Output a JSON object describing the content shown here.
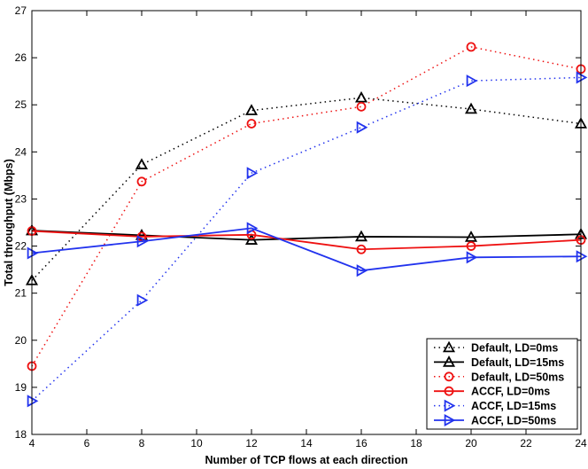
{
  "chart_data": {
    "type": "line",
    "title": "",
    "xlabel": "Number of TCP flows at each direction",
    "ylabel": "Total throughput (Mbps)",
    "xlim": [
      4,
      24
    ],
    "ylim": [
      18,
      27
    ],
    "xticks": [
      "4",
      "6",
      "8",
      "10",
      "12",
      "14",
      "16",
      "18",
      "20",
      "22",
      "24"
    ],
    "yticks": [
      "18",
      "19",
      "20",
      "21",
      "22",
      "23",
      "24",
      "25",
      "26",
      "27"
    ],
    "legend_position": "bottom-right",
    "x": [
      4,
      8,
      12,
      16,
      20,
      24
    ],
    "series": [
      {
        "name": "Default, LD=0ms",
        "color": "#000000",
        "style": "dotted",
        "marker": "triangle-up",
        "values": [
          21.27,
          23.73,
          24.88,
          25.15,
          24.91,
          24.6
        ]
      },
      {
        "name": "Default, LD=15ms",
        "color": "#000000",
        "style": "solid",
        "marker": "triangle-up",
        "values": [
          22.33,
          22.23,
          22.13,
          22.2,
          22.19,
          22.25
        ]
      },
      {
        "name": "Default, LD=50ms",
        "color": "#ee1111",
        "style": "dotted",
        "marker": "circle",
        "values": [
          19.45,
          23.37,
          24.6,
          24.96,
          26.23,
          25.76
        ]
      },
      {
        "name": "ACCF, LD=0ms",
        "color": "#ee1111",
        "style": "solid",
        "marker": "circle",
        "values": [
          22.32,
          22.2,
          22.24,
          21.93,
          22.0,
          22.13
        ]
      },
      {
        "name": "ACCF, LD=15ms",
        "color": "#2233ee",
        "style": "dotted",
        "marker": "triangle-right",
        "values": [
          18.71,
          20.85,
          23.55,
          24.52,
          25.51,
          25.58
        ]
      },
      {
        "name": "ACCF, LD=50ms",
        "color": "#2233ee",
        "style": "solid",
        "marker": "triangle-right",
        "values": [
          21.85,
          22.1,
          22.38,
          21.48,
          21.76,
          21.78
        ]
      }
    ]
  }
}
